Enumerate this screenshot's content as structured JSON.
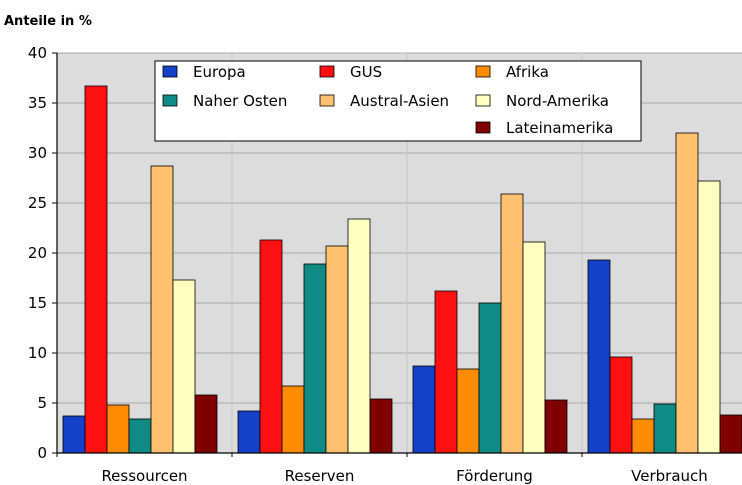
{
  "chart_data": {
    "type": "bar",
    "title": "Anteile in %",
    "categories": [
      "Ressourcen",
      "Reserven",
      "Förderung",
      "Verbrauch"
    ],
    "ylim": [
      0,
      40
    ],
    "yticks": [
      0,
      5,
      10,
      15,
      20,
      25,
      30,
      35,
      40
    ],
    "grid": true,
    "legend_position": "top",
    "series": [
      {
        "name": "Europa",
        "color": "#1540c8",
        "values": [
          3.7,
          4.2,
          8.7,
          19.3
        ]
      },
      {
        "name": "GUS",
        "color": "#ff1010",
        "values": [
          36.7,
          21.3,
          16.2,
          9.6
        ]
      },
      {
        "name": "Afrika",
        "color": "#ff8c00",
        "values": [
          4.8,
          6.7,
          8.4,
          3.4
        ]
      },
      {
        "name": "Naher Osten",
        "color": "#108a84",
        "values": [
          3.4,
          18.9,
          15.0,
          4.9
        ]
      },
      {
        "name": "Austral-Asien",
        "color": "#ffc070",
        "values": [
          28.7,
          20.7,
          25.9,
          32.0
        ]
      },
      {
        "name": "Nord-Amerika",
        "color": "#ffffc0",
        "values": [
          17.3,
          23.4,
          21.1,
          27.2
        ]
      },
      {
        "name": "Lateinamerika",
        "color": "#800000",
        "values": [
          5.8,
          5.4,
          5.3,
          3.8
        ]
      }
    ],
    "legend_order": [
      "Europa",
      "GUS",
      "Afrika",
      "Naher Osten",
      "Austral-Asien",
      "Nord-Amerika",
      "Lateinamerika"
    ],
    "plot_background": "#dcdcdc"
  }
}
